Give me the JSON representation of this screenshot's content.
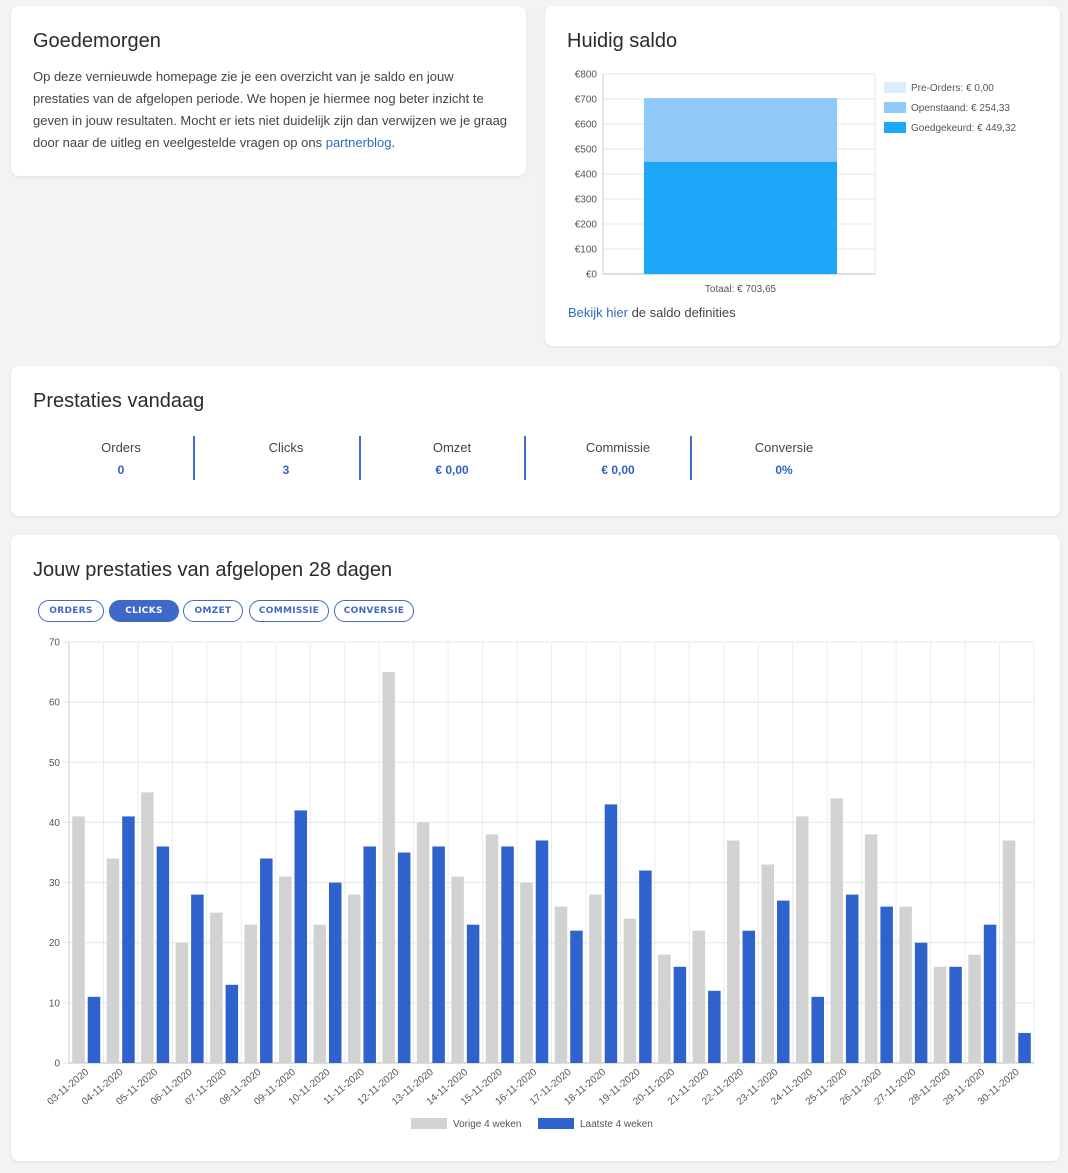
{
  "welcome": {
    "title": "Goedemorgen",
    "text": "Op deze vernieuwde homepage zie je een overzicht van je saldo en jouw prestaties van de afgelopen periode. We hopen je hiermee nog beter inzicht te geven in jouw resultaten. Mocht er iets niet duidelijk zijn dan verwijzen we je graag door naar de uitleg en veelgestelde vragen op ons ",
    "link_label": "partnerblog",
    "text_end": "."
  },
  "saldo": {
    "title": "Huidig saldo",
    "link_label": "Bekijk hier",
    "link_suffix": " de saldo definities"
  },
  "today": {
    "title": "Prestaties vandaag",
    "stats": [
      {
        "label": "Orders",
        "value": "0"
      },
      {
        "label": "Clicks",
        "value": "3"
      },
      {
        "label": "Omzet",
        "value": "€ 0,00"
      },
      {
        "label": "Commissie",
        "value": "€ 0,00"
      },
      {
        "label": "Conversie",
        "value": "0%"
      }
    ]
  },
  "performance": {
    "title": "Jouw prestaties van afgelopen 28 dagen",
    "tabs": [
      {
        "label": "ORDERS",
        "active": false
      },
      {
        "label": "CLICKS",
        "active": true
      },
      {
        "label": "OMZET",
        "active": false
      },
      {
        "label": "COMMISSIE",
        "active": false
      },
      {
        "label": "CONVERSIE",
        "active": false
      }
    ]
  },
  "chart_data": [
    {
      "type": "bar",
      "stacked": true,
      "categories": [
        "Totaal: € 703,65"
      ],
      "series": [
        {
          "name": "Pre-Orders: € 0,00",
          "values": [
            0
          ],
          "color": "#dcecfb"
        },
        {
          "name": "Openstaand: € 254,33",
          "values": [
            254.33
          ],
          "color": "#90caf9"
        },
        {
          "name": "Goedgekeurd: € 449,32",
          "values": [
            449.32
          ],
          "color": "#1ea7f9"
        }
      ],
      "y_ticks": [
        "€0",
        "€100",
        "€200",
        "€300",
        "€400",
        "€500",
        "€600",
        "€700",
        "€800"
      ],
      "ylim": [
        0,
        800
      ],
      "legend": "right",
      "grid": true
    },
    {
      "type": "bar",
      "categories": [
        "03-11-2020",
        "04-11-2020",
        "05-11-2020",
        "06-11-2020",
        "07-11-2020",
        "08-11-2020",
        "09-11-2020",
        "10-11-2020",
        "11-11-2020",
        "12-11-2020",
        "13-11-2020",
        "14-11-2020",
        "15-11-2020",
        "16-11-2020",
        "17-11-2020",
        "18-11-2020",
        "19-11-2020",
        "20-11-2020",
        "21-11-2020",
        "22-11-2020",
        "23-11-2020",
        "24-11-2020",
        "25-11-2020",
        "26-11-2020",
        "27-11-2020",
        "28-11-2020",
        "29-11-2020",
        "30-11-2020"
      ],
      "series": [
        {
          "name": "Vorige 4 weken",
          "color": "#d2d2d2",
          "values": [
            41,
            34,
            45,
            20,
            25,
            23,
            31,
            23,
            28,
            65,
            40,
            31,
            38,
            30,
            26,
            28,
            24,
            18,
            22,
            37,
            33,
            41,
            44,
            38,
            26,
            16,
            18,
            37
          ]
        },
        {
          "name": "Laatste 4 weken",
          "color": "#2f62cc",
          "values": [
            11,
            41,
            36,
            28,
            13,
            34,
            42,
            30,
            36,
            35,
            36,
            23,
            36,
            37,
            22,
            43,
            32,
            16,
            12,
            22,
            27,
            11,
            28,
            26,
            20,
            16,
            23,
            5
          ]
        }
      ],
      "ylim": [
        0,
        70
      ],
      "y_ticks": [
        0,
        10,
        20,
        30,
        40,
        50,
        60,
        70
      ],
      "legend": "bottom",
      "grid": true
    }
  ]
}
